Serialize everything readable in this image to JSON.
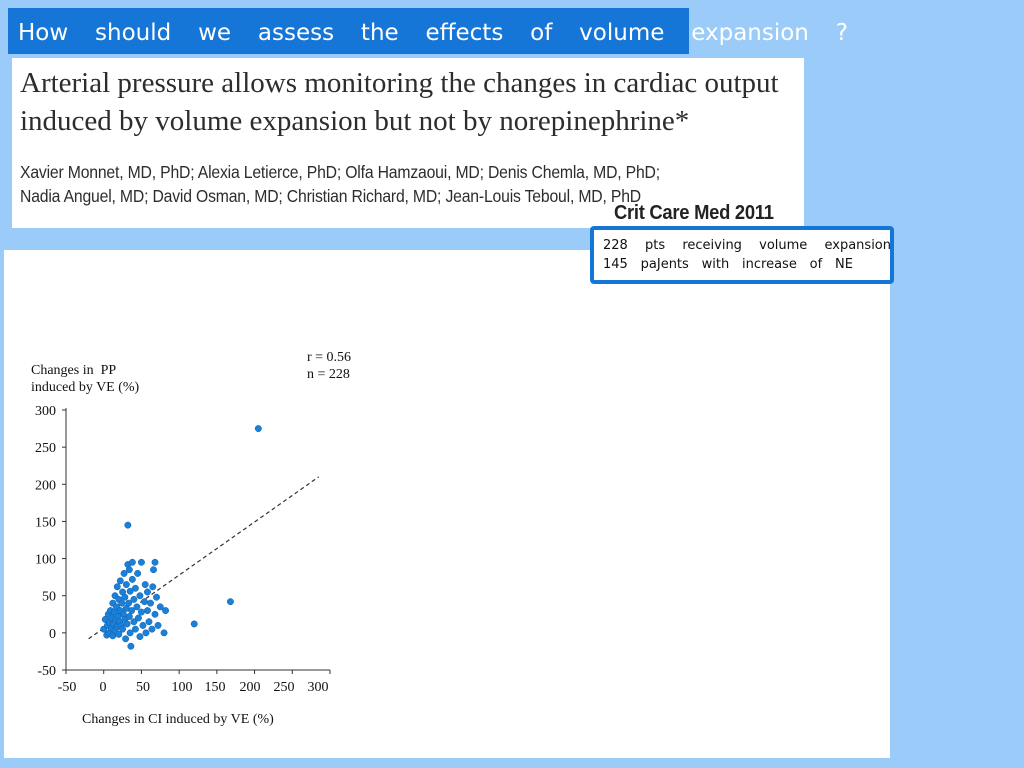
{
  "slide": {
    "title_words": [
      "How",
      "should",
      "we",
      "assess",
      "the",
      "effects",
      "of",
      "volume",
      "expansion",
      "?"
    ],
    "colors": {
      "title_bar": "#1576d8",
      "background": "#9bcbf9",
      "box_border": "#1576d8",
      "points": "#1a80d8"
    }
  },
  "paper": {
    "title_line1": "Arterial pressure allows monitoring the changes in cardiac output",
    "title_line2": "induced by volume expansion but not by norepinephrine*",
    "authors_line1": "Xavier Monnet, MD, PhD; Alexia Letierce, PhD; Olfa Hamzaoui, MD; Denis Chemla, MD, PhD;",
    "authors_line2": "Nadia Anguel, MD; David Osman, MD; Christian Richard, MD; Jean-Louis Teboul, MD, PhD",
    "journal": "Crit Care Med 2011"
  },
  "info_box": {
    "line1_words": [
      "228",
      "pts",
      "receiving",
      "volume",
      "expansion"
    ],
    "line2_words": [
      "145",
      "paJents",
      "with",
      "increase",
      "of",
      "NE"
    ]
  },
  "chart_data": {
    "type": "scatter",
    "title": "",
    "ylabel_line1": "Changes in  PP",
    "ylabel_line2": "induced by VE (%)",
    "xlabel": "Changes in CI induced by VE (%)",
    "annotation_r": "r = 0.56",
    "annotation_n": "n = 228",
    "xlim": [
      -50,
      300
    ],
    "ylim": [
      -50,
      300
    ],
    "x_ticks": [
      "-50",
      "0",
      "50",
      "100",
      "150",
      "200",
      "250",
      "300"
    ],
    "y_ticks": [
      "300",
      "250",
      "200",
      "150",
      "100",
      "50",
      "0",
      "-50"
    ],
    "trendline": {
      "style": "dashed",
      "x": [
        -20,
        285
      ],
      "y": [
        -8,
        210
      ]
    },
    "points": [
      {
        "x": 0,
        "y": 5
      },
      {
        "x": 2,
        "y": 18
      },
      {
        "x": 4,
        "y": -3
      },
      {
        "x": 5,
        "y": 10
      },
      {
        "x": 6,
        "y": 25
      },
      {
        "x": 7,
        "y": 0
      },
      {
        "x": 8,
        "y": 14
      },
      {
        "x": 9,
        "y": 30
      },
      {
        "x": 10,
        "y": 6
      },
      {
        "x": 11,
        "y": 20
      },
      {
        "x": 12,
        "y": -4
      },
      {
        "x": 12,
        "y": 40
      },
      {
        "x": 13,
        "y": 12
      },
      {
        "x": 14,
        "y": 28
      },
      {
        "x": 15,
        "y": 3
      },
      {
        "x": 15,
        "y": 50
      },
      {
        "x": 16,
        "y": 18
      },
      {
        "x": 17,
        "y": 35
      },
      {
        "x": 18,
        "y": 8
      },
      {
        "x": 18,
        "y": 62
      },
      {
        "x": 19,
        "y": 22
      },
      {
        "x": 20,
        "y": -2
      },
      {
        "x": 20,
        "y": 45
      },
      {
        "x": 21,
        "y": 15
      },
      {
        "x": 22,
        "y": 30
      },
      {
        "x": 22,
        "y": 70
      },
      {
        "x": 23,
        "y": 10
      },
      {
        "x": 24,
        "y": 40
      },
      {
        "x": 25,
        "y": 5
      },
      {
        "x": 25,
        "y": 55
      },
      {
        "x": 26,
        "y": 25
      },
      {
        "x": 27,
        "y": 80
      },
      {
        "x": 28,
        "y": 18
      },
      {
        "x": 28,
        "y": 48
      },
      {
        "x": 29,
        "y": -8
      },
      {
        "x": 30,
        "y": 33
      },
      {
        "x": 30,
        "y": 65
      },
      {
        "x": 31,
        "y": 12
      },
      {
        "x": 32,
        "y": 92
      },
      {
        "x": 32,
        "y": 145
      },
      {
        "x": 33,
        "y": 40
      },
      {
        "x": 34,
        "y": 22
      },
      {
        "x": 34,
        "y": 85
      },
      {
        "x": 35,
        "y": 0
      },
      {
        "x": 35,
        "y": 56
      },
      {
        "x": 36,
        "y": -18
      },
      {
        "x": 37,
        "y": 30
      },
      {
        "x": 38,
        "y": 72
      },
      {
        "x": 38,
        "y": 95
      },
      {
        "x": 40,
        "y": 15
      },
      {
        "x": 40,
        "y": 45
      },
      {
        "x": 42,
        "y": 60
      },
      {
        "x": 42,
        "y": 5
      },
      {
        "x": 44,
        "y": 35
      },
      {
        "x": 45,
        "y": 80
      },
      {
        "x": 46,
        "y": 20
      },
      {
        "x": 48,
        "y": 50
      },
      {
        "x": 48,
        "y": -5
      },
      {
        "x": 50,
        "y": 28
      },
      {
        "x": 50,
        "y": 95
      },
      {
        "x": 52,
        "y": 10
      },
      {
        "x": 54,
        "y": 42
      },
      {
        "x": 55,
        "y": 65
      },
      {
        "x": 56,
        "y": 0
      },
      {
        "x": 58,
        "y": 30
      },
      {
        "x": 58,
        "y": 55
      },
      {
        "x": 60,
        "y": 15
      },
      {
        "x": 62,
        "y": 40
      },
      {
        "x": 64,
        "y": 5
      },
      {
        "x": 65,
        "y": 62
      },
      {
        "x": 66,
        "y": 85
      },
      {
        "x": 68,
        "y": 25
      },
      {
        "x": 68,
        "y": 95
      },
      {
        "x": 70,
        "y": 48
      },
      {
        "x": 72,
        "y": 10
      },
      {
        "x": 75,
        "y": 35
      },
      {
        "x": 80,
        "y": 0
      },
      {
        "x": 82,
        "y": 30
      },
      {
        "x": 120,
        "y": 12
      },
      {
        "x": 168,
        "y": 42
      },
      {
        "x": 205,
        "y": 275
      }
    ]
  }
}
